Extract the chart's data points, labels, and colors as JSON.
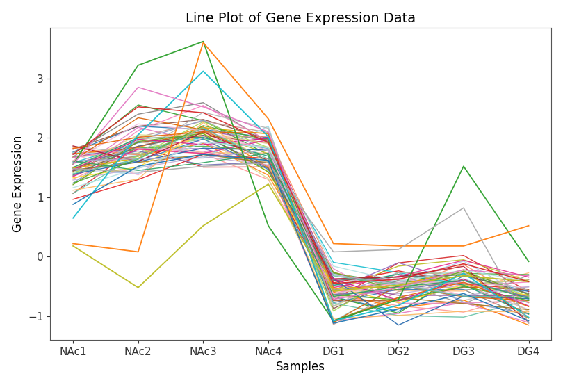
{
  "title": "Line Plot of Gene Expression Data",
  "xlabel": "Samples",
  "ylabel": "Gene Expression",
  "x_labels": [
    "NAc1",
    "NAc2",
    "NAc3",
    "NAc4",
    "DG1",
    "DG2",
    "DG3",
    "DG4"
  ],
  "ylim": [
    -1.4,
    3.85
  ],
  "n_lines": 55,
  "random_seed": 7,
  "background_color": "#ffffff",
  "title_fontsize": 14,
  "label_fontsize": 12,
  "tick_fontsize": 11,
  "linewidth": 1.0,
  "alpha": 0.9,
  "nac_mean": [
    1.5,
    1.85,
    2.05,
    1.75
  ],
  "nac_std": [
    0.28,
    0.32,
    0.3,
    0.28
  ],
  "dg_mean": [
    -0.62,
    -0.52,
    -0.48,
    -0.65
  ],
  "dg_std": [
    0.28,
    0.28,
    0.3,
    0.28
  ],
  "figsize": [
    8.1,
    5.54
  ],
  "dpi": 100
}
